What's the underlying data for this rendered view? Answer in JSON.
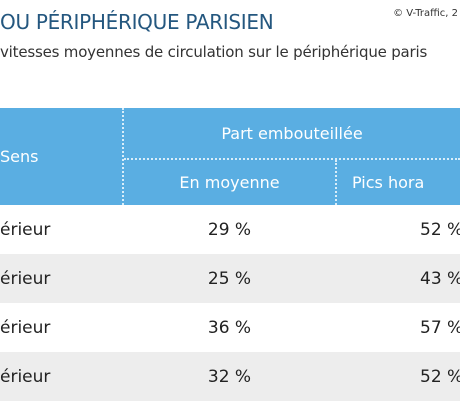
{
  "header": {
    "title": "OU PÉRIPHÉRIQUE PARISIEN",
    "source": "© V-Traffic, 2",
    "subtitle": "vitesses moyennes de circulation sur le périphérique paris"
  },
  "table": {
    "columns": {
      "sens": "Sens",
      "group": "Part embouteillée",
      "avg": "En moyenne",
      "peak": "Pics hora"
    },
    "rows": [
      [
        "érieur",
        "29 %",
        "52 %"
      ],
      [
        "érieur",
        "25 %",
        "43 %"
      ],
      [
        "érieur",
        "36 %",
        "57 %"
      ],
      [
        "érieur",
        "32 %",
        "52 %"
      ]
    ]
  }
}
